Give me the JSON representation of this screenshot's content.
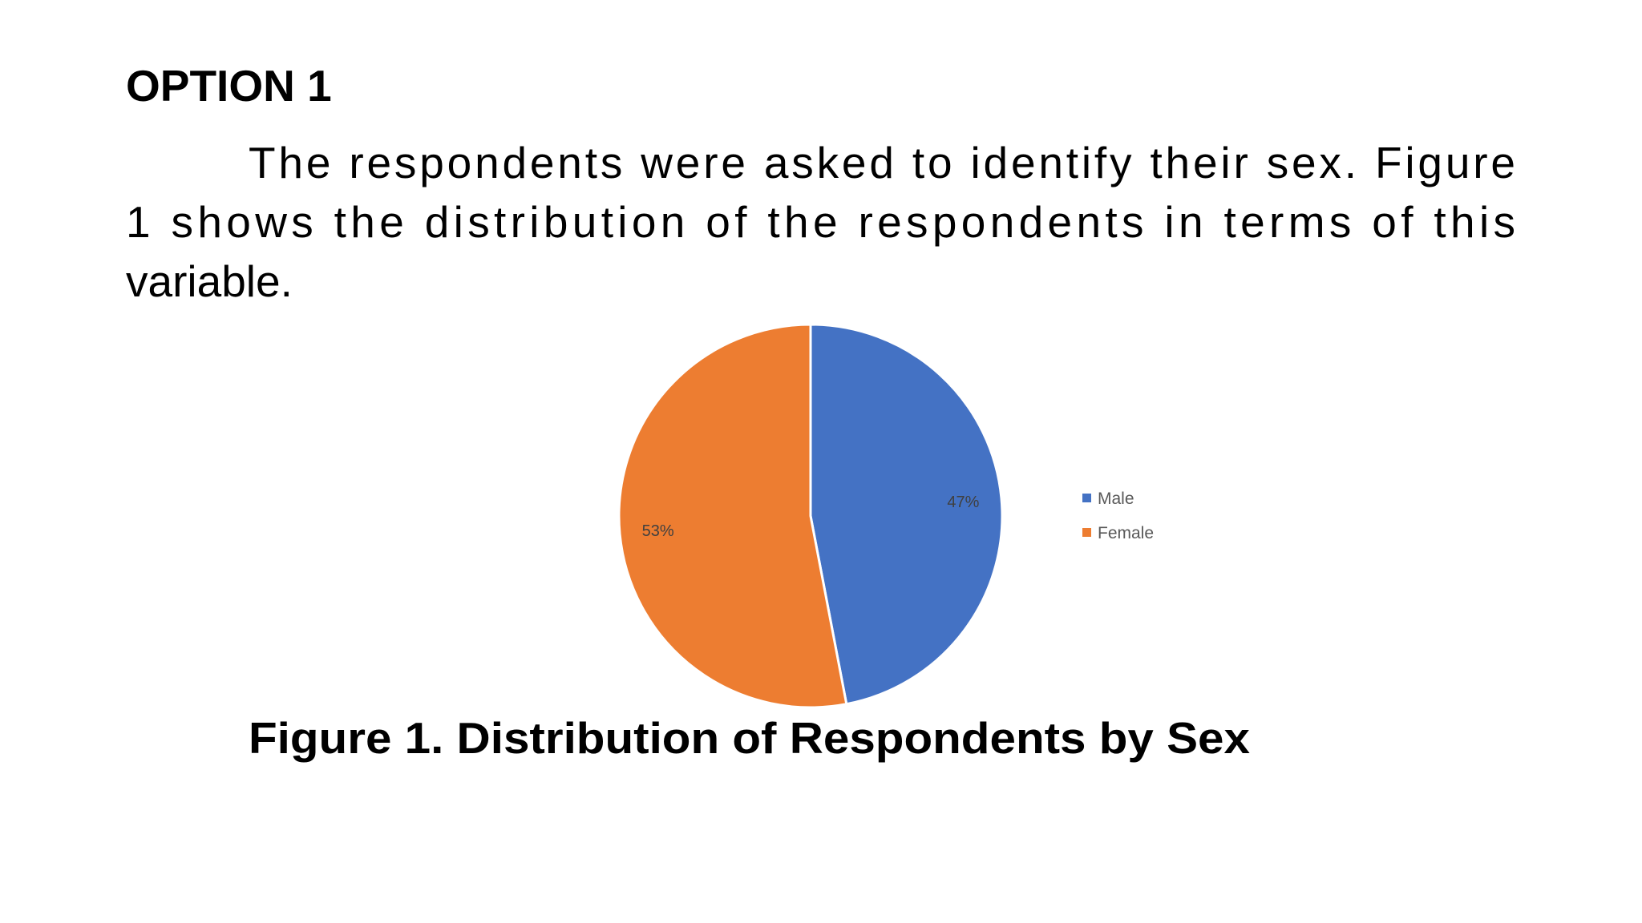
{
  "heading": "OPTION 1",
  "paragraph": {
    "lines": [
      "The respondents were asked to identify their sex. Figure",
      "1 shows the distribution of the respondents in terms of this",
      "variable."
    ]
  },
  "chart_data": {
    "type": "pie",
    "title": "Figure 1. Distribution of Respondents by Sex",
    "categories": [
      "Male",
      "Female"
    ],
    "values": [
      47,
      53
    ],
    "value_labels": [
      "47%",
      "53%"
    ],
    "colors": [
      "#4472c4",
      "#ed7d31"
    ],
    "legend": "right"
  }
}
